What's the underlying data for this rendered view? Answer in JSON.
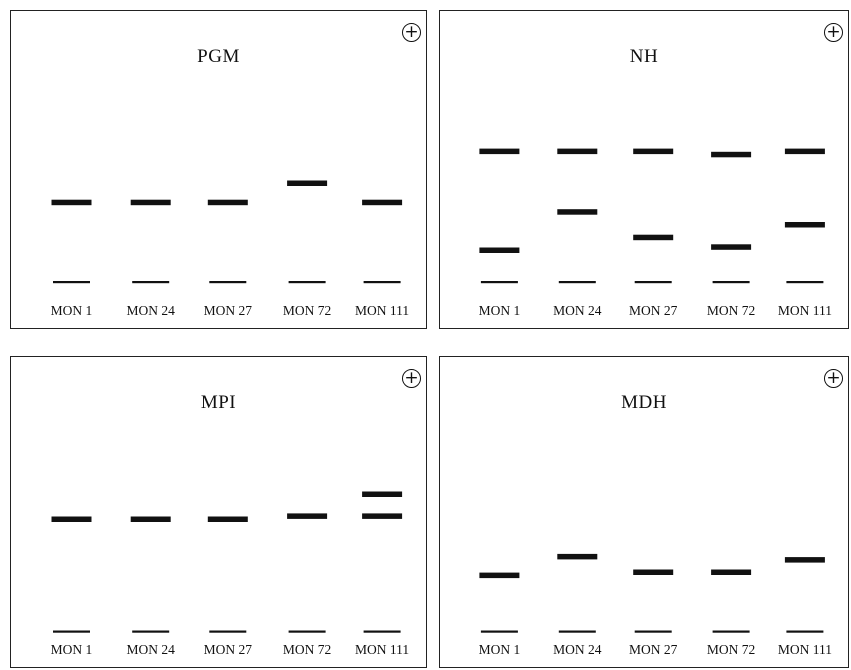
{
  "panels": [
    {
      "id": "pgm",
      "title": "PGM",
      "symbol": "+",
      "lanes": [
        {
          "label": "MON 1",
          "bands": [
            {
              "level": 0.6,
              "weight": "thick"
            },
            {
              "level": 0.85,
              "weight": "thin"
            }
          ]
        },
        {
          "label": "MON 24",
          "bands": [
            {
              "level": 0.6,
              "weight": "thick"
            },
            {
              "level": 0.85,
              "weight": "thin"
            }
          ]
        },
        {
          "label": "MON 27",
          "bands": [
            {
              "level": 0.6,
              "weight": "thick"
            },
            {
              "level": 0.85,
              "weight": "thin"
            }
          ]
        },
        {
          "label": "MON 72",
          "bands": [
            {
              "level": 0.54,
              "weight": "thick"
            },
            {
              "level": 0.85,
              "weight": "thin"
            }
          ]
        },
        {
          "label": "MON 111",
          "bands": [
            {
              "level": 0.6,
              "weight": "thick"
            },
            {
              "level": 0.85,
              "weight": "thin"
            }
          ]
        }
      ]
    },
    {
      "id": "nh",
      "title": "NH",
      "symbol": "+",
      "lanes": [
        {
          "label": "MON 1",
          "bands": [
            {
              "level": 0.44,
              "weight": "thick"
            },
            {
              "level": 0.75,
              "weight": "thick"
            },
            {
              "level": 0.85,
              "weight": "thin"
            }
          ]
        },
        {
          "label": "MON 24",
          "bands": [
            {
              "level": 0.44,
              "weight": "thick"
            },
            {
              "level": 0.63,
              "weight": "thick"
            },
            {
              "level": 0.85,
              "weight": "thin"
            }
          ]
        },
        {
          "label": "MON 27",
          "bands": [
            {
              "level": 0.44,
              "weight": "thick"
            },
            {
              "level": 0.71,
              "weight": "thick"
            },
            {
              "level": 0.85,
              "weight": "thin"
            }
          ]
        },
        {
          "label": "MON 72",
          "bands": [
            {
              "level": 0.45,
              "weight": "thick"
            },
            {
              "level": 0.74,
              "weight": "thick"
            },
            {
              "level": 0.85,
              "weight": "thin"
            }
          ]
        },
        {
          "label": "MON 111",
          "bands": [
            {
              "level": 0.44,
              "weight": "thick"
            },
            {
              "level": 0.67,
              "weight": "thick"
            },
            {
              "level": 0.85,
              "weight": "thin"
            }
          ]
        }
      ]
    },
    {
      "id": "mpi",
      "title": "MPI",
      "symbol": "+",
      "lanes": [
        {
          "label": "MON 1",
          "bands": [
            {
              "level": 0.52,
              "weight": "thick"
            },
            {
              "level": 0.88,
              "weight": "thin"
            }
          ]
        },
        {
          "label": "MON 24",
          "bands": [
            {
              "level": 0.52,
              "weight": "thick"
            },
            {
              "level": 0.88,
              "weight": "thin"
            }
          ]
        },
        {
          "label": "MON 27",
          "bands": [
            {
              "level": 0.52,
              "weight": "thick"
            },
            {
              "level": 0.88,
              "weight": "thin"
            }
          ]
        },
        {
          "label": "MON 72",
          "bands": [
            {
              "level": 0.51,
              "weight": "thick"
            },
            {
              "level": 0.88,
              "weight": "thin"
            }
          ]
        },
        {
          "label": "MON 111",
          "bands": [
            {
              "level": 0.44,
              "weight": "thick"
            },
            {
              "level": 0.51,
              "weight": "thick"
            },
            {
              "level": 0.88,
              "weight": "thin"
            }
          ]
        }
      ]
    },
    {
      "id": "mdh",
      "title": "MDH",
      "symbol": "+",
      "lanes": [
        {
          "label": "MON 1",
          "bands": [
            {
              "level": 0.7,
              "weight": "thick"
            },
            {
              "level": 0.88,
              "weight": "thin"
            }
          ]
        },
        {
          "label": "MON 24",
          "bands": [
            {
              "level": 0.64,
              "weight": "thick"
            },
            {
              "level": 0.88,
              "weight": "thin"
            }
          ]
        },
        {
          "label": "MON 27",
          "bands": [
            {
              "level": 0.69,
              "weight": "thick"
            },
            {
              "level": 0.88,
              "weight": "thin"
            }
          ]
        },
        {
          "label": "MON 72",
          "bands": [
            {
              "level": 0.69,
              "weight": "thick"
            },
            {
              "level": 0.88,
              "weight": "thin"
            }
          ]
        },
        {
          "label": "MON 111",
          "bands": [
            {
              "level": 0.65,
              "weight": "thick"
            },
            {
              "level": 0.88,
              "weight": "thin"
            }
          ]
        }
      ]
    }
  ],
  "colors": {
    "band": "#111111",
    "border": "#222222",
    "background": "#ffffff"
  }
}
